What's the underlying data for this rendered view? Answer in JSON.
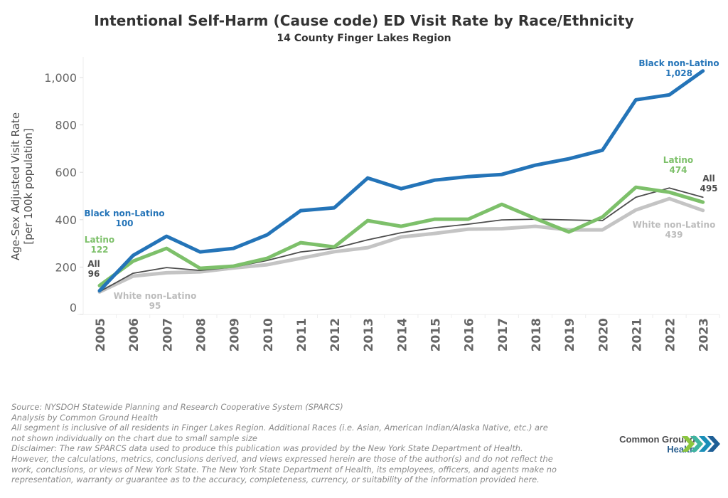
{
  "chart_data": {
    "type": "line",
    "title": "Intentional Self-Harm (Cause code) ED Visit Rate by Race/Ethnicity",
    "subtitle": "14 County Finger Lakes Region",
    "xlabel": "",
    "ylabel": [
      "Age-Sex Adjusted Visit Rate",
      "[per 100k population]"
    ],
    "ylim": [
      0,
      1080
    ],
    "yticks": [
      0,
      200,
      400,
      600,
      800,
      1000
    ],
    "ytick_labels": [
      "0",
      "200",
      "400",
      "600",
      "800",
      "1,000"
    ],
    "grid": false,
    "legend": "none (direct labels on lines)",
    "x": [
      "2005",
      "2006",
      "2007",
      "2008",
      "2009",
      "2010",
      "2011",
      "2012",
      "2013",
      "2014",
      "2015",
      "2016",
      "2017",
      "2018",
      "2019",
      "2020",
      "2021",
      "2022",
      "2023"
    ],
    "series": [
      {
        "name": "White non-Latino",
        "color": "#c4c4c4",
        "values": [
          95,
          162,
          176,
          180,
          196,
          210,
          237,
          265,
          282,
          327,
          342,
          360,
          362,
          372,
          357,
          357,
          441,
          489,
          439
        ],
        "start_label": [
          "White non-Latino",
          "95"
        ],
        "end_label": [
          "White non-Latino",
          "439"
        ]
      },
      {
        "name": "All",
        "color": "#4d4d4d",
        "values": [
          96,
          174,
          198,
          186,
          200,
          228,
          264,
          279,
          315,
          345,
          366,
          381,
          399,
          402,
          399,
          396,
          495,
          534,
          495
        ],
        "start_label": [
          "All",
          "96"
        ],
        "end_label": [
          "All",
          "495"
        ]
      },
      {
        "name": "Latino",
        "color": "#7dc06a",
        "values": [
          122,
          225,
          279,
          195,
          204,
          237,
          303,
          285,
          396,
          372,
          402,
          402,
          465,
          405,
          348,
          411,
          537,
          516,
          474
        ],
        "start_label": [
          "Latino",
          "122"
        ],
        "end_label": [
          "Latino",
          "474"
        ]
      },
      {
        "name": "Black non-Latino",
        "color": "#2474b8",
        "values": [
          100,
          249,
          330,
          264,
          279,
          336,
          438,
          450,
          576,
          531,
          567,
          582,
          591,
          630,
          657,
          693,
          906,
          927,
          1028
        ],
        "start_label": [
          "Black non-Latino",
          "100"
        ],
        "end_label": [
          "Black non-Latino",
          "1,028"
        ]
      }
    ]
  },
  "footer": {
    "lines": [
      "Source: NYSDOH Statewide Planning and Research Cooperative System (SPARCS)",
      "Analysis by Common Ground Health",
      "All segment is inclusive of all residents in Finger Lakes Region. Additional Races (i.e. Asian, American Indian/Alaska Native, etc.) are",
      "not shown individually on the chart due to small sample size",
      "Disclaimer: The raw SPARCS data used to produce this publication was provided by the New York State Department of Health.",
      "However, the calculations, metrics, conclusions derived, and views expressed herein are those of the author(s) and do not reflect the",
      "work, conclusions, or views of New York State. The New York State Department of Health, its employees, officers, and agents make no",
      "representation, warranty or guarantee as to the accuracy, completeness, currency, or suitability of the information provided here."
    ]
  },
  "logo": {
    "line1": "Common Ground",
    "line2": "Health",
    "chevron_colors": [
      "#8cc63f",
      "#3fb5a0",
      "#1a8fb8",
      "#1f5f96"
    ]
  }
}
